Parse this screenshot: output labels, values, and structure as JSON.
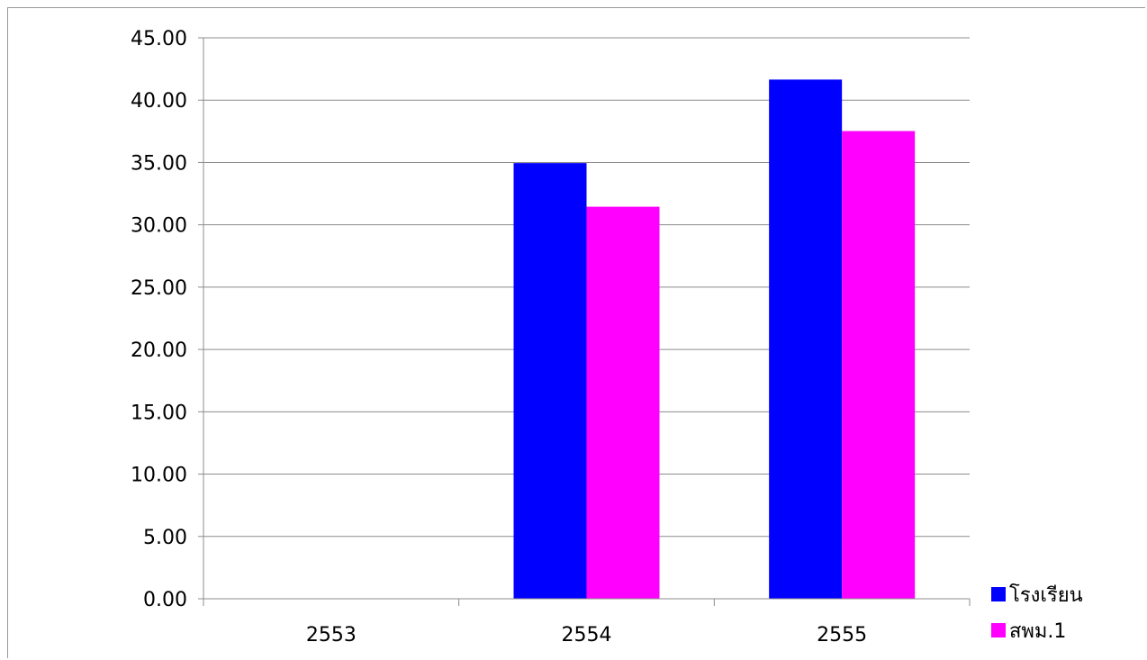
{
  "chart_data": {
    "type": "bar",
    "categories": [
      "2553",
      "2554",
      "2555"
    ],
    "series": [
      {
        "name": "โรงเรียน",
        "color": "#0000ff",
        "values": [
          0,
          34.95,
          41.65
        ]
      },
      {
        "name": "สพม.1",
        "color": "#ff00ff",
        "values": [
          0,
          31.45,
          37.52
        ]
      }
    ],
    "ylim": [
      0,
      45
    ],
    "ytick_values": [
      0,
      5,
      10,
      15,
      20,
      25,
      30,
      35,
      40,
      45
    ],
    "ytick_labels": [
      "0.00",
      "5.00",
      "10.00",
      "15.00",
      "20.00",
      "25.00",
      "30.00",
      "35.00",
      "40.00",
      "45.00"
    ],
    "grid": true,
    "legend_position": "bottom-right"
  }
}
